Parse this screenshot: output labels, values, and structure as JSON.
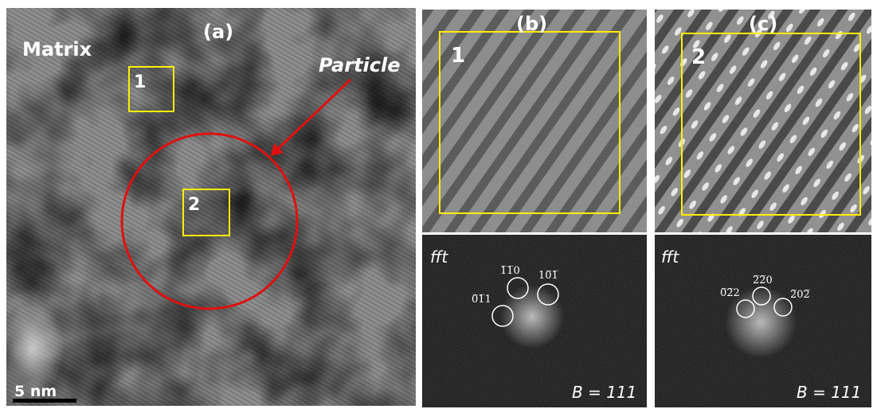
{
  "panel_a": {
    "label": "(a)",
    "matrix": "Matrix",
    "particle": "Particle",
    "box1": "1",
    "box2": "2",
    "scale_bar": "5 nm"
  },
  "panel_b": {
    "label": "(b)",
    "box": "1",
    "fft": "fft",
    "spots": [
      "1̅1̅0",
      "10̅1̅",
      "0̅1̅1"
    ],
    "beam": "B = 111"
  },
  "panel_c": {
    "label": "(c)",
    "box": "2",
    "fft": "fft",
    "spots": [
      "2̅2̅0",
      "0̅2̅2",
      "2̅02̅"
    ],
    "beam": "B = 111"
  }
}
